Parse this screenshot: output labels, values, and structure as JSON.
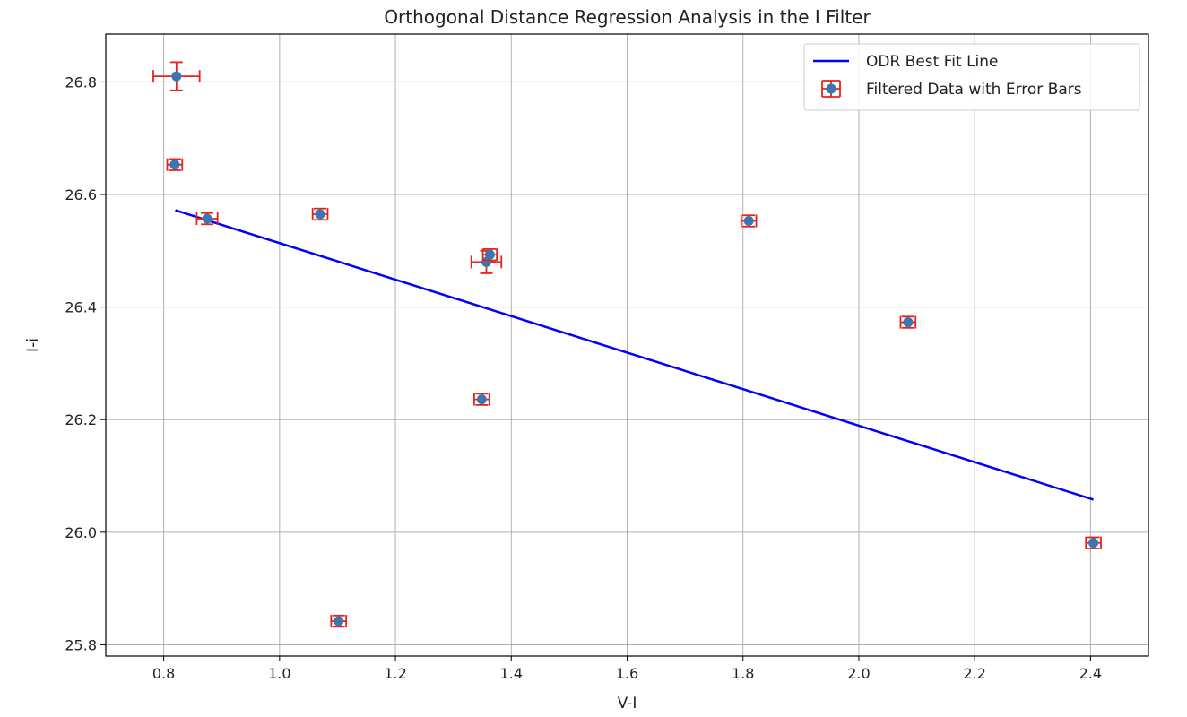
{
  "chart_data": {
    "type": "scatter",
    "title": "Orthogonal Distance Regression Analysis in the I Filter",
    "xlabel": "V-I",
    "ylabel": "I-i",
    "xlim": [
      0.7,
      2.5
    ],
    "ylim": [
      25.78,
      26.885
    ],
    "grid": true,
    "legend_position": "top-right",
    "x_ticks": [
      "0.8",
      "1.0",
      "1.2",
      "1.4",
      "1.6",
      "1.8",
      "2.0",
      "2.2",
      "2.4"
    ],
    "y_ticks": [
      "25.8",
      "26.0",
      "26.2",
      "26.4",
      "26.6",
      "26.8"
    ],
    "series": [
      {
        "name": "ODR Best Fit Line",
        "kind": "line",
        "color": "#0000ff",
        "x": [
          0.82,
          2.405
        ],
        "y": [
          26.572,
          26.058
        ]
      },
      {
        "name": "Filtered Data with Error Bars",
        "kind": "errorbar",
        "marker_color": "#3a76af",
        "errorbar_color": "#e8221a",
        "points": [
          {
            "x": 0.822,
            "y": 26.81,
            "xerr": 0.04,
            "yerr": 0.025
          },
          {
            "x": 0.819,
            "y": 26.653,
            "xerr": 0.013,
            "yerr": 0.01
          },
          {
            "x": 0.875,
            "y": 26.557,
            "xerr": 0.018,
            "yerr": 0.01
          },
          {
            "x": 1.07,
            "y": 26.565,
            "xerr": 0.013,
            "yerr": 0.01
          },
          {
            "x": 1.102,
            "y": 25.842,
            "xerr": 0.013,
            "yerr": 0.01
          },
          {
            "x": 1.349,
            "y": 26.236,
            "xerr": 0.013,
            "yerr": 0.01
          },
          {
            "x": 1.357,
            "y": 26.48,
            "xerr": 0.026,
            "yerr": 0.02
          },
          {
            "x": 1.363,
            "y": 26.493,
            "xerr": 0.012,
            "yerr": 0.01
          },
          {
            "x": 1.81,
            "y": 26.553,
            "xerr": 0.013,
            "yerr": 0.01
          },
          {
            "x": 2.085,
            "y": 26.373,
            "xerr": 0.013,
            "yerr": 0.01
          },
          {
            "x": 2.405,
            "y": 25.981,
            "xerr": 0.013,
            "yerr": 0.01
          }
        ]
      }
    ]
  }
}
